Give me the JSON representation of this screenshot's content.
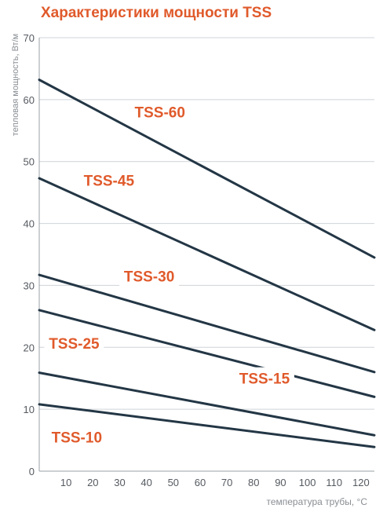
{
  "chart_data": {
    "type": "line",
    "title": "Характеристики мощности TSS",
    "xlabel": "температура трубы, °C",
    "ylabel": "тепловая мощность, Вт/м",
    "xlim": [
      0,
      125
    ],
    "ylim": [
      0,
      70
    ],
    "x_ticks": [
      10,
      20,
      30,
      40,
      50,
      60,
      70,
      80,
      90,
      100,
      110,
      120
    ],
    "y_ticks": [
      0,
      10,
      20,
      30,
      40,
      50,
      60,
      70
    ],
    "grid": "horizontal",
    "colors": {
      "line": "#233645",
      "label": "#e05a2b",
      "grid": "#cfd4d8"
    },
    "series": [
      {
        "name": "TSS-60",
        "x": [
          0,
          125
        ],
        "y": [
          63.2,
          34.5
        ],
        "label_at": [
          45,
          58
        ]
      },
      {
        "name": "TSS-45",
        "x": [
          0,
          125
        ],
        "y": [
          47.3,
          22.8
        ],
        "label_at": [
          26,
          47
        ]
      },
      {
        "name": "TSS-30",
        "x": [
          0,
          125
        ],
        "y": [
          31.7,
          16.0
        ],
        "label_at": [
          41,
          31.5
        ]
      },
      {
        "name": "TSS-25",
        "x": [
          0,
          125
        ],
        "y": [
          26.0,
          12.0
        ],
        "label_at": [
          13,
          20.7
        ]
      },
      {
        "name": "TSS-15",
        "x": [
          0,
          125
        ],
        "y": [
          15.9,
          5.8
        ],
        "label_at": [
          84,
          15
        ]
      },
      {
        "name": "TSS-10",
        "x": [
          0,
          125
        ],
        "y": [
          10.8,
          3.9
        ],
        "label_at": [
          14,
          5.5
        ]
      }
    ]
  }
}
